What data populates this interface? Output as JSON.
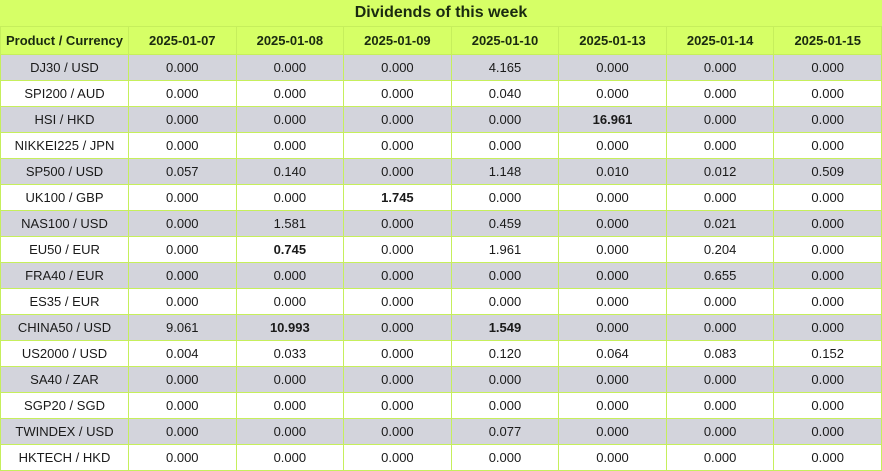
{
  "title": "Dividends of this week",
  "header": {
    "product_label": "Product / Currency",
    "dates": [
      "2025-01-07",
      "2025-01-08",
      "2025-01-09",
      "2025-01-10",
      "2025-01-13",
      "2025-01-14",
      "2025-01-15"
    ]
  },
  "rows": [
    {
      "product": "DJ30 / USD",
      "values": [
        "0.000",
        "0.000",
        "0.000",
        "4.165",
        "0.000",
        "0.000",
        "0.000"
      ],
      "bold": []
    },
    {
      "product": "SPI200 / AUD",
      "values": [
        "0.000",
        "0.000",
        "0.000",
        "0.040",
        "0.000",
        "0.000",
        "0.000"
      ],
      "bold": []
    },
    {
      "product": "HSI / HKD",
      "values": [
        "0.000",
        "0.000",
        "0.000",
        "0.000",
        "16.961",
        "0.000",
        "0.000"
      ],
      "bold": [
        4
      ]
    },
    {
      "product": "NIKKEI225 / JPN",
      "values": [
        "0.000",
        "0.000",
        "0.000",
        "0.000",
        "0.000",
        "0.000",
        "0.000"
      ],
      "bold": []
    },
    {
      "product": "SP500 / USD",
      "values": [
        "0.057",
        "0.140",
        "0.000",
        "1.148",
        "0.010",
        "0.012",
        "0.509"
      ],
      "bold": []
    },
    {
      "product": "UK100 / GBP",
      "values": [
        "0.000",
        "0.000",
        "1.745",
        "0.000",
        "0.000",
        "0.000",
        "0.000"
      ],
      "bold": [
        2
      ]
    },
    {
      "product": "NAS100 / USD",
      "values": [
        "0.000",
        "1.581",
        "0.000",
        "0.459",
        "0.000",
        "0.021",
        "0.000"
      ],
      "bold": []
    },
    {
      "product": "EU50 / EUR",
      "values": [
        "0.000",
        "0.745",
        "0.000",
        "1.961",
        "0.000",
        "0.204",
        "0.000"
      ],
      "bold": [
        1
      ]
    },
    {
      "product": "FRA40 / EUR",
      "values": [
        "0.000",
        "0.000",
        "0.000",
        "0.000",
        "0.000",
        "0.655",
        "0.000"
      ],
      "bold": []
    },
    {
      "product": "ES35 / EUR",
      "values": [
        "0.000",
        "0.000",
        "0.000",
        "0.000",
        "0.000",
        "0.000",
        "0.000"
      ],
      "bold": []
    },
    {
      "product": "CHINA50 / USD",
      "values": [
        "9.061",
        "10.993",
        "0.000",
        "1.549",
        "0.000",
        "0.000",
        "0.000"
      ],
      "bold": [
        1,
        3
      ]
    },
    {
      "product": "US2000 / USD",
      "values": [
        "0.004",
        "0.033",
        "0.000",
        "0.120",
        "0.064",
        "0.083",
        "0.152"
      ],
      "bold": []
    },
    {
      "product": "SA40 / ZAR",
      "values": [
        "0.000",
        "0.000",
        "0.000",
        "0.000",
        "0.000",
        "0.000",
        "0.000"
      ],
      "bold": []
    },
    {
      "product": "SGP20 / SGD",
      "values": [
        "0.000",
        "0.000",
        "0.000",
        "0.000",
        "0.000",
        "0.000",
        "0.000"
      ],
      "bold": []
    },
    {
      "product": "TWINDEX / USD",
      "values": [
        "0.000",
        "0.000",
        "0.000",
        "0.077",
        "0.000",
        "0.000",
        "0.000"
      ],
      "bold": []
    },
    {
      "product": "HKTECH / HKD",
      "values": [
        "0.000",
        "0.000",
        "0.000",
        "0.000",
        "0.000",
        "0.000",
        "0.000"
      ],
      "bold": []
    }
  ]
}
